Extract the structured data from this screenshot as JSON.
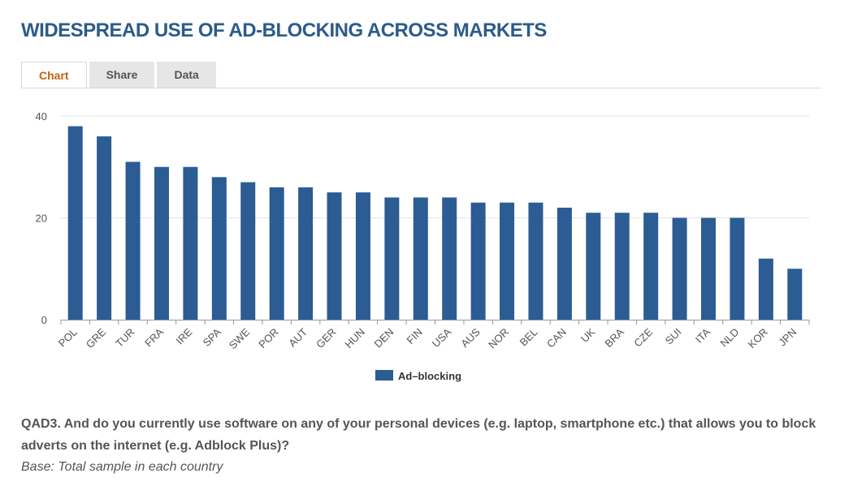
{
  "header": {
    "title": "WIDESPREAD USE OF AD-BLOCKING ACROSS MARKETS"
  },
  "tabs": [
    {
      "label": "Chart",
      "active": true
    },
    {
      "label": "Share",
      "active": false
    },
    {
      "label": "Data",
      "active": false
    }
  ],
  "chart_data": {
    "type": "bar",
    "categories": [
      "POL",
      "GRE",
      "TUR",
      "FRA",
      "IRE",
      "SPA",
      "SWE",
      "POR",
      "AUT",
      "GER",
      "HUN",
      "DEN",
      "FIN",
      "USA",
      "AUS",
      "NOR",
      "BEL",
      "CAN",
      "UK",
      "BRA",
      "CZE",
      "SUI",
      "ITA",
      "NLD",
      "KOR",
      "JPN"
    ],
    "series": [
      {
        "name": "Ad–blocking",
        "values": [
          38,
          36,
          31,
          30,
          30,
          28,
          27,
          26,
          26,
          25,
          25,
          24,
          24,
          24,
          23,
          23,
          23,
          22,
          21,
          21,
          21,
          20,
          20,
          20,
          12,
          10
        ],
        "color": "#2b5c94"
      }
    ],
    "ylim": [
      0,
      40
    ],
    "yticks": [
      0,
      20,
      40
    ],
    "grid": true,
    "legend_position": "bottom-center"
  },
  "footer": {
    "question": "QAD3. And do you currently use software on any of your personal devices (e.g. laptop, smartphone etc.) that allows you to block adverts on the internet (e.g. Adblock Plus)?",
    "base": "Base: Total sample in each country"
  }
}
